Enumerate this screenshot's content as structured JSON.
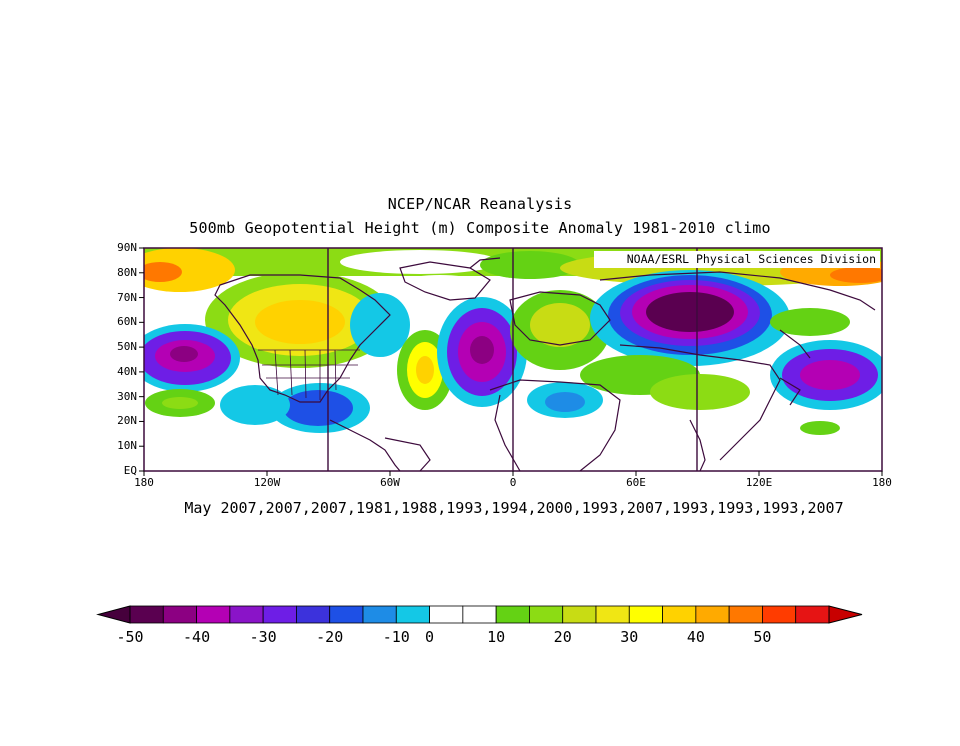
{
  "title_line1": "NCEP/NCAR Reanalysis",
  "title_line2": "500mb Geopotential Height (m) Composite Anomaly 1981-2010 climo",
  "credit": "NOAA/ESRL Physical Sciences Division",
  "subtitle": "May 2007,2007,2007,1981,1988,1993,1994,2000,1993,2007,1993,1993,1993,2007",
  "lat_labels": [
    "90N",
    "80N",
    "70N",
    "60N",
    "50N",
    "40N",
    "30N",
    "20N",
    "10N",
    "EQ"
  ],
  "lon_labels": [
    "180",
    "120W",
    "60W",
    "0",
    "60E",
    "120E",
    "180"
  ],
  "colorbar": {
    "labels": [
      "-50",
      "-40",
      "-30",
      "-20",
      "-10",
      "0",
      "10",
      "20",
      "30",
      "40",
      "50"
    ],
    "colors": [
      "#5a0050",
      "#8c0082",
      "#b400b4",
      "#8a14c8",
      "#6e1ee6",
      "#3c32dc",
      "#1e50e6",
      "#1e8ce6",
      "#14c8e6",
      "#ffffff",
      "#ffffff",
      "#64d214",
      "#8cdc14",
      "#c8dc14",
      "#f0e614",
      "#ffff00",
      "#ffd200",
      "#ffaa00",
      "#ff7800",
      "#ff3c00",
      "#e61414"
    ],
    "under_color": "#46003c",
    "over_color": "#c80000"
  }
}
